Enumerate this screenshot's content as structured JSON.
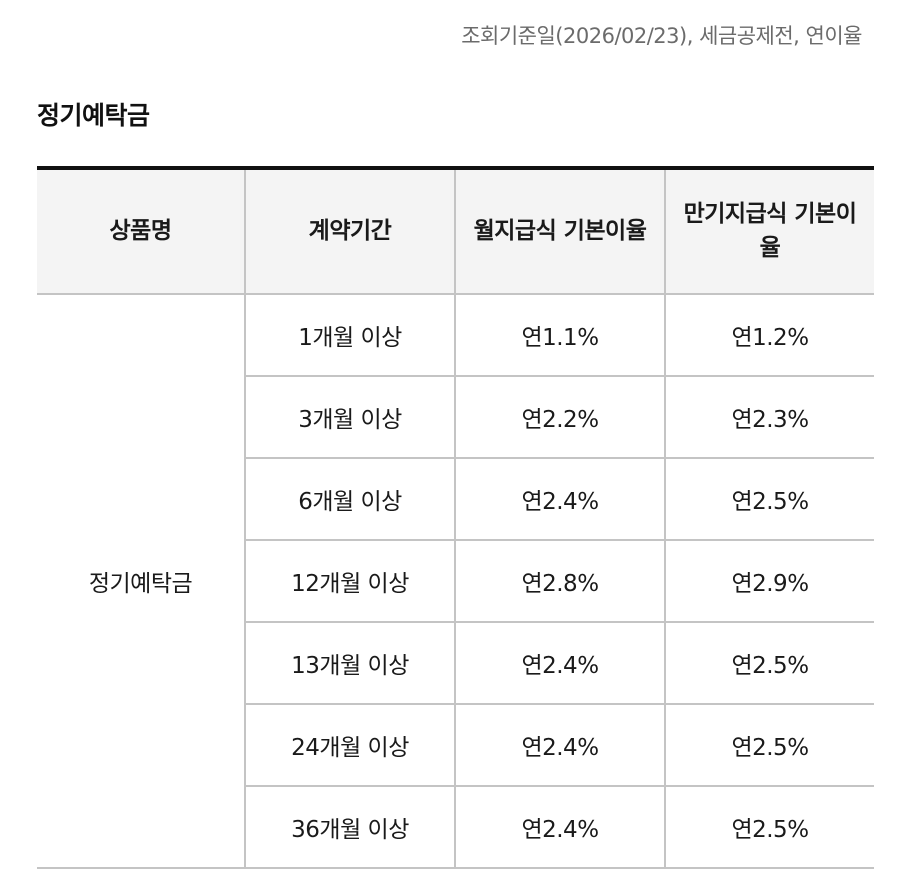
{
  "notice": "조회기준일(2026/02/23), 세금공제전, 연이율",
  "section_title": "정기예탁금",
  "table": {
    "headers": [
      "상품명",
      "계약기간",
      "월지급식 기본이율",
      "만기지급식 기본이율"
    ],
    "product_name": "정기예탁금",
    "rows": [
      {
        "term": "1개월 이상",
        "monthly_rate": "연1.1%",
        "maturity_rate": "연1.2%"
      },
      {
        "term": "3개월 이상",
        "monthly_rate": "연2.2%",
        "maturity_rate": "연2.3%"
      },
      {
        "term": "6개월 이상",
        "monthly_rate": "연2.4%",
        "maturity_rate": "연2.5%"
      },
      {
        "term": "12개월 이상",
        "monthly_rate": "연2.8%",
        "maturity_rate": "연2.9%"
      },
      {
        "term": "13개월 이상",
        "monthly_rate": "연2.4%",
        "maturity_rate": "연2.5%"
      },
      {
        "term": "24개월 이상",
        "monthly_rate": "연2.4%",
        "maturity_rate": "연2.5%"
      },
      {
        "term": "36개월 이상",
        "monthly_rate": "연2.4%",
        "maturity_rate": "연2.5%"
      }
    ]
  }
}
